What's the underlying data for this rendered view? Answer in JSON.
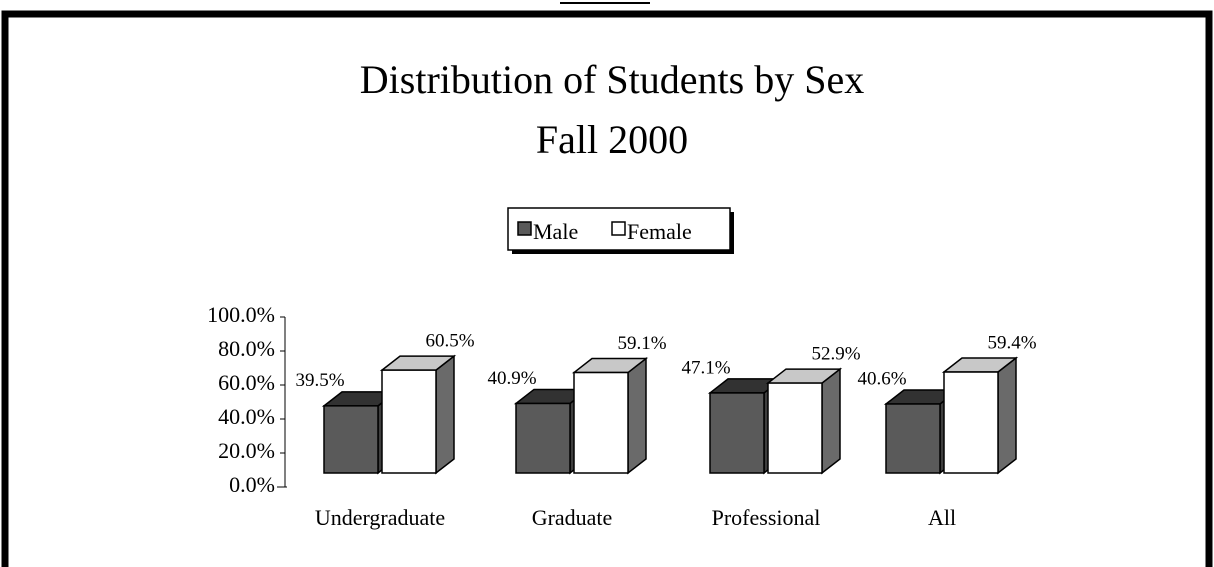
{
  "chart_data": {
    "type": "bar3d",
    "title": "Distribution of Students by Sex",
    "subtitle": "Fall 2000",
    "categories": [
      "Undergraduate",
      "Graduate",
      "Professional",
      "All"
    ],
    "series": [
      {
        "name": "Male",
        "color": "#5a5a5a",
        "values": [
          39.5,
          40.9,
          47.1,
          40.6
        ],
        "value_labels": [
          "39.5%",
          "40.9%",
          "47.1%",
          "40.6%"
        ]
      },
      {
        "name": "Female",
        "color": "#ffffff",
        "values": [
          60.5,
          59.1,
          52.9,
          59.4
        ],
        "value_labels": [
          "60.5%",
          "59.1%",
          "52.9%",
          "59.4%"
        ]
      }
    ],
    "ylim": [
      0,
      100
    ],
    "yticks": [
      {
        "value": 0,
        "label": "0.0%"
      },
      {
        "value": 20,
        "label": "20.0%"
      },
      {
        "value": 40,
        "label": "40.0%"
      },
      {
        "value": 60,
        "label": "60.0%"
      },
      {
        "value": 80,
        "label": "80.0%"
      },
      {
        "value": 100,
        "label": "100.0%"
      }
    ],
    "grid": false,
    "legend": "top"
  }
}
